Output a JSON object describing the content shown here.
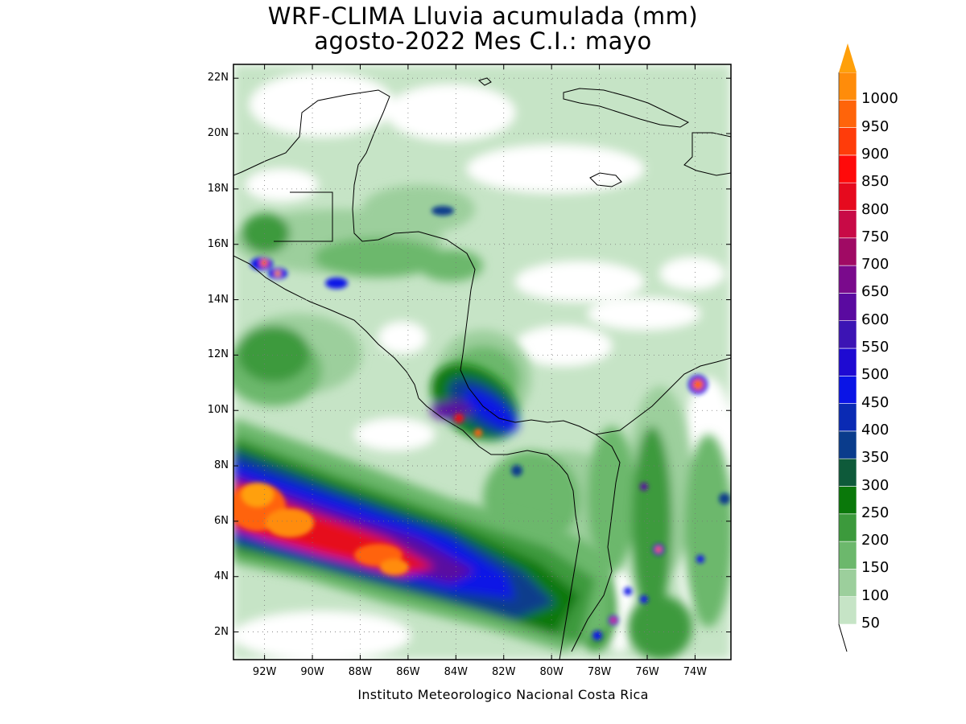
{
  "title_line1": "WRF-CLIMA Lluvia acumulada (mm)",
  "title_line2": "agosto-2022 Mes C.I.: mayo",
  "credit": "Instituto Meteorologico Nacional Costa Rica",
  "map": {
    "lat_range": [
      1,
      22.5
    ],
    "lon_range": [
      -93.3,
      -72.5
    ],
    "lat_ticks": [
      {
        "value": 2,
        "label": "2N"
      },
      {
        "value": 4,
        "label": "4N"
      },
      {
        "value": 6,
        "label": "6N"
      },
      {
        "value": 8,
        "label": "8N"
      },
      {
        "value": 10,
        "label": "10N"
      },
      {
        "value": 12,
        "label": "12N"
      },
      {
        "value": 14,
        "label": "14N"
      },
      {
        "value": 16,
        "label": "16N"
      },
      {
        "value": 18,
        "label": "18N"
      },
      {
        "value": 20,
        "label": "20N"
      },
      {
        "value": 22,
        "label": "22N"
      }
    ],
    "lon_ticks": [
      {
        "value": -92,
        "label": "92W"
      },
      {
        "value": -90,
        "label": "90W"
      },
      {
        "value": -88,
        "label": "88W"
      },
      {
        "value": -86,
        "label": "86W"
      },
      {
        "value": -84,
        "label": "84W"
      },
      {
        "value": -82,
        "label": "82W"
      },
      {
        "value": -80,
        "label": "80W"
      },
      {
        "value": -78,
        "label": "78W"
      },
      {
        "value": -76,
        "label": "76W"
      },
      {
        "value": -74,
        "label": "74W"
      }
    ],
    "grid": "dotted"
  },
  "colorbar": {
    "levels": [
      {
        "label": "50",
        "color": "#c6e4c6"
      },
      {
        "label": "100",
        "color": "#9ccf9c"
      },
      {
        "label": "150",
        "color": "#6cb86c"
      },
      {
        "label": "200",
        "color": "#3c9a3c"
      },
      {
        "label": "250",
        "color": "#0a780a"
      },
      {
        "label": "300",
        "color": "#0e5a3a"
      },
      {
        "label": "350",
        "color": "#0a3c8c"
      },
      {
        "label": "400",
        "color": "#0a2ab4"
      },
      {
        "label": "450",
        "color": "#0a14e6"
      },
      {
        "label": "500",
        "color": "#1e0ad2"
      },
      {
        "label": "550",
        "color": "#3c14b4"
      },
      {
        "label": "600",
        "color": "#5a0aa0"
      },
      {
        "label": "650",
        "color": "#7a0a8c"
      },
      {
        "label": "700",
        "color": "#a00a64"
      },
      {
        "label": "750",
        "color": "#c80a46"
      },
      {
        "label": "800",
        "color": "#e60a1e"
      },
      {
        "label": "850",
        "color": "#ff0a0a"
      },
      {
        "label": "900",
        "color": "#ff3c0a"
      },
      {
        "label": "950",
        "color": "#ff640a"
      },
      {
        "label": "1000",
        "color": "#ff8c0a"
      }
    ],
    "top_arrow_color": "#ffa00a"
  },
  "rain_field": [
    {
      "lon": -92.0,
      "lat": 6.6,
      "rx": 2.6,
      "ry": 1.7,
      "level": 10
    },
    {
      "lon": -92.0,
      "lat": 6.0,
      "rx": 2.0,
      "ry": 1.0,
      "level": 17
    },
    {
      "lon": -86.5,
      "lat": 4.6,
      "rx": 1.7,
      "ry": 0.8,
      "level": 15
    },
    {
      "lon": -83.0,
      "lat": 9.6,
      "rx": 1.3,
      "ry": 0.6,
      "level": 9
    },
    {
      "lon": -91.6,
      "lat": 15.0,
      "rx": 0.5,
      "ry": 0.3,
      "level": 17
    },
    {
      "lon": -73.9,
      "lat": 10.8,
      "rx": 0.3,
      "ry": 0.3,
      "level": 18
    },
    {
      "lon": -76.0,
      "lat": 5.0,
      "rx": 0.3,
      "ry": 0.5,
      "level": 17
    },
    {
      "lon": -77.4,
      "lat": 2.3,
      "rx": 0.2,
      "ry": 0.2,
      "level": 16
    }
  ]
}
